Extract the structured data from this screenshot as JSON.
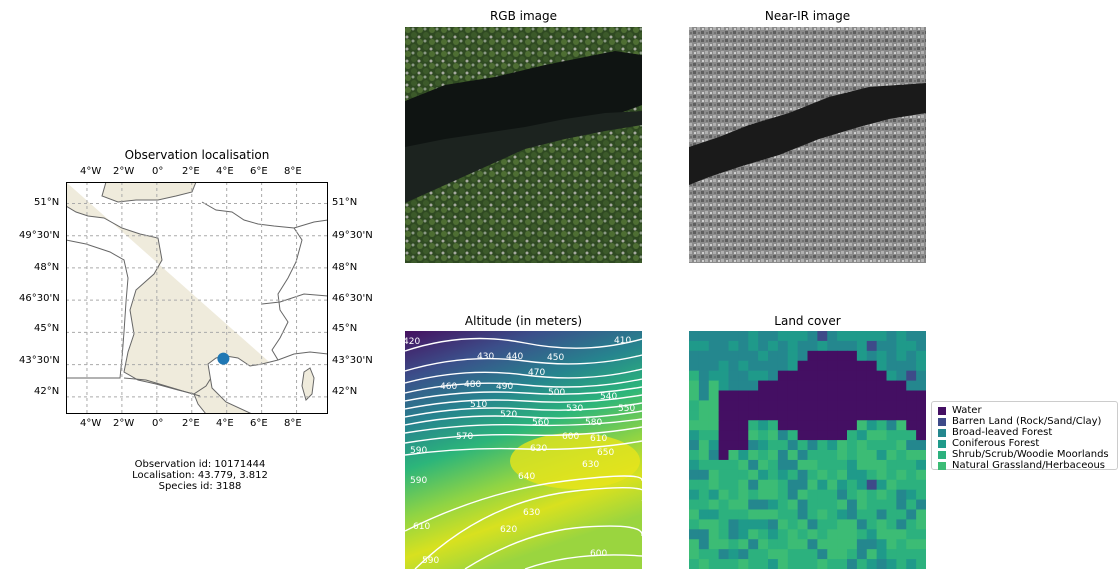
{
  "map_panel": {
    "title": "Observation localisation",
    "lon_ticks": [
      "4°W",
      "2°W",
      "0°",
      "2°E",
      "4°E",
      "6°E",
      "8°E"
    ],
    "lat_ticks": [
      "51°N",
      "49°30'N",
      "48°N",
      "46°30'N",
      "45°N",
      "43°30'N",
      "42°N"
    ],
    "land_color": "#efebdc",
    "marker_color": "#1f77b4",
    "observation_id": "Observation id: 10171444",
    "localisation": "Localisation: 43.779, 3.812",
    "species_id": "Species id: 3188"
  },
  "rgb_panel": {
    "title": "RGB image"
  },
  "nir_panel": {
    "title": "Near-IR image"
  },
  "altitude_panel": {
    "title": "Altitude (in meters)",
    "contour_labels": [
      "420",
      "410",
      "430",
      "440",
      "450",
      "460",
      "470",
      "480",
      "490",
      "500",
      "510",
      "520",
      "530",
      "540",
      "550",
      "560",
      "570",
      "580",
      "590",
      "600",
      "610",
      "620",
      "630",
      "640",
      "650",
      "590",
      "610",
      "620",
      "630",
      "600",
      "590"
    ]
  },
  "landcover_panel": {
    "title": "Land cover"
  },
  "legend": {
    "items": [
      {
        "label": "Water",
        "color": "#440f63"
      },
      {
        "label": "Barren Land (Rock/Sand/Clay)",
        "color": "#3e4a89"
      },
      {
        "label": "Broad-leaved Forest",
        "color": "#24878e"
      },
      {
        "label": "Coniferous Forest",
        "color": "#1f9a8a"
      },
      {
        "label": "Shrub/Scrub/Woodie Moorlands",
        "color": "#2cb17e"
      },
      {
        "label": "Natural Grassland/Herbaceous",
        "color": "#3cbc75"
      }
    ]
  },
  "chart_data": [
    {
      "type": "scatter",
      "title": "Observation localisation",
      "x": [
        3.812
      ],
      "y": [
        43.779
      ],
      "xlim": [
        -5.2,
        9.8
      ],
      "ylim": [
        41.2,
        52.0
      ],
      "grid": true
    },
    {
      "type": "heatmap",
      "title": "Altitude (in meters)",
      "contour_levels": [
        410,
        420,
        430,
        440,
        450,
        460,
        470,
        480,
        490,
        500,
        510,
        520,
        530,
        540,
        550,
        560,
        570,
        580,
        590,
        600,
        610,
        620,
        630,
        640,
        650
      ],
      "colormap": "viridis"
    },
    {
      "type": "heatmap",
      "title": "Land cover",
      "categories": [
        "Water",
        "Barren Land (Rock/Sand/Clay)",
        "Broad-leaved Forest",
        "Coniferous Forest",
        "Shrub/Scrub/Woodie Moorlands",
        "Natural Grassland/Herbaceous"
      ]
    }
  ]
}
